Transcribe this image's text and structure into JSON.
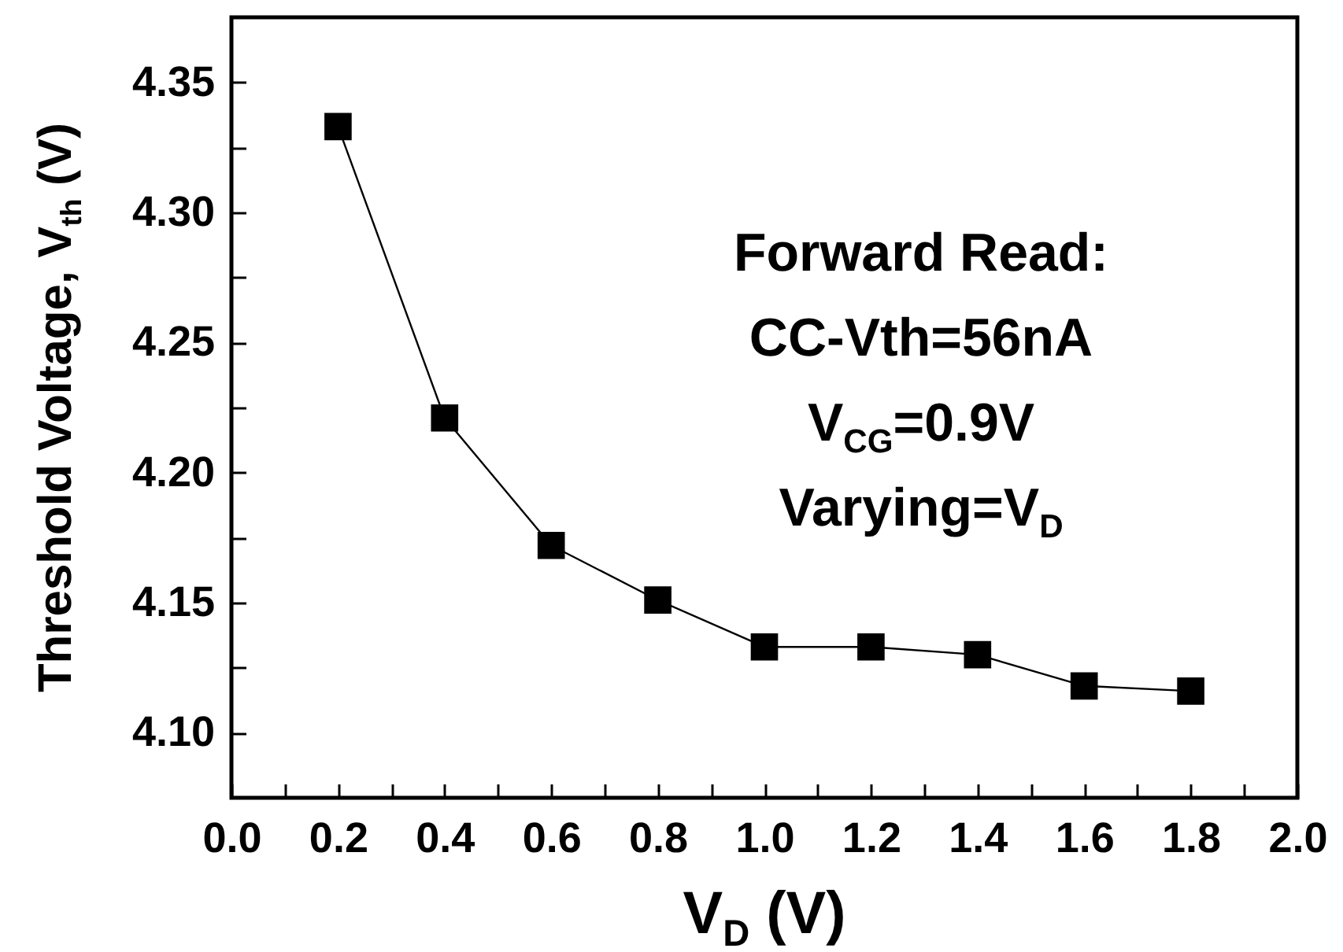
{
  "chart_data": {
    "type": "line",
    "xlabel": "V$_{D}$ (V)",
    "ylabel": "Threshold Voltage, V$_{th}$ (V)",
    "annotations": [
      "Forward Read:",
      "CC-Vth=56nA",
      "V$_{CG}$=0.9V",
      "Varying=V$_{D}$"
    ],
    "x": [
      0.2,
      0.4,
      0.6,
      0.8,
      1.0,
      1.2,
      1.4,
      1.6,
      1.8
    ],
    "series": [
      {
        "color": "#000000",
        "values": [
          4.333,
          4.221,
          4.172,
          4.151,
          4.133,
          4.133,
          4.13,
          4.118,
          4.116
        ]
      }
    ],
    "marker": "square",
    "line_style": "solid",
    "xlim": [
      0,
      2
    ],
    "ylim": [
      4.075,
      4.375
    ],
    "grid": false,
    "legend": false,
    "xticks": [
      {
        "value": 0,
        "label": "0.0"
      },
      {
        "value": 0.1,
        "label": null
      },
      {
        "value": 0.2,
        "label": "0.2"
      },
      {
        "value": 0.3,
        "label": null
      },
      {
        "value": 0.4,
        "label": "0.4"
      },
      {
        "value": 0.5,
        "label": null
      },
      {
        "value": 0.6,
        "label": "0.6"
      },
      {
        "value": 0.7,
        "label": null
      },
      {
        "value": 0.8,
        "label": "0.8"
      },
      {
        "value": 0.9,
        "label": null
      },
      {
        "value": 1.0,
        "label": "1.0"
      },
      {
        "value": 1.1,
        "label": null
      },
      {
        "value": 1.2,
        "label": "1.2"
      },
      {
        "value": 1.3,
        "label": null
      },
      {
        "value": 1.4,
        "label": "1.4"
      },
      {
        "value": 1.5,
        "label": null
      },
      {
        "value": 1.6,
        "label": "1.6"
      },
      {
        "value": 1.7,
        "label": null
      },
      {
        "value": 1.8,
        "label": "1.8"
      },
      {
        "value": 1.9,
        "label": null
      },
      {
        "value": 2.0,
        "label": "2.0"
      }
    ],
    "yticks": [
      {
        "value": 4.1,
        "label": "4.10"
      },
      {
        "value": 4.125,
        "label": null
      },
      {
        "value": 4.15,
        "label": "4.15"
      },
      {
        "value": 4.175,
        "label": null
      },
      {
        "value": 4.2,
        "label": "4.20"
      },
      {
        "value": 4.225,
        "label": null
      },
      {
        "value": 4.25,
        "label": "4.25"
      },
      {
        "value": 4.275,
        "label": null
      },
      {
        "value": 4.3,
        "label": "4.30"
      },
      {
        "value": 4.325,
        "label": null
      },
      {
        "value": 4.35,
        "label": "4.35"
      }
    ]
  }
}
